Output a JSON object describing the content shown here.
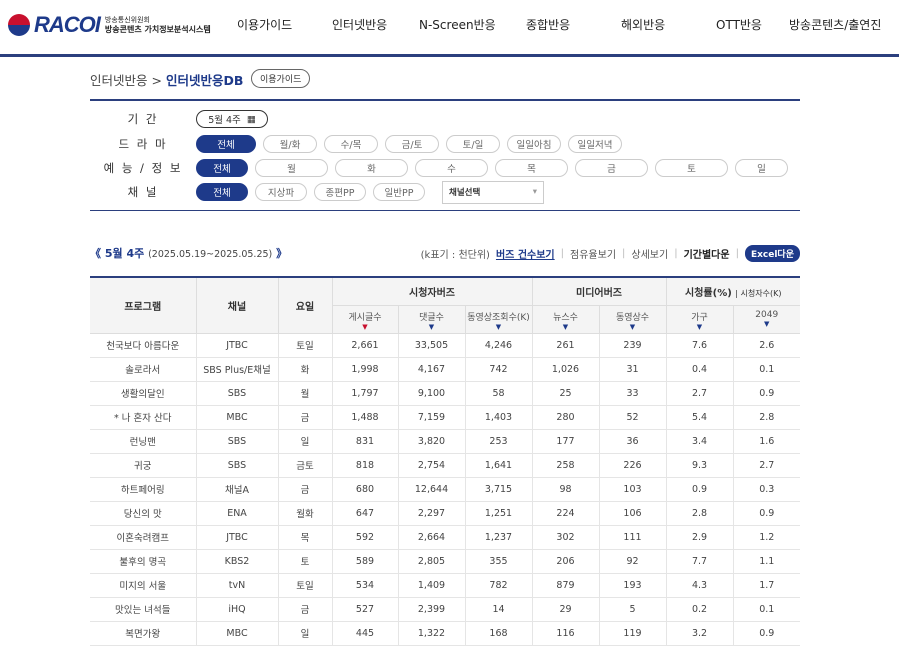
{
  "header": {
    "brand": "RACOI",
    "org": "방송통신위원회",
    "system": "방송콘텐츠 가치정보분석시스템",
    "nav": [
      "이용가이드",
      "인터넷반응",
      "N-Screen반응",
      "종합반응",
      "해외반응",
      "OTT반응",
      "방송콘텐츠/출연진"
    ]
  },
  "breadcrumb": {
    "parent": "인터넷반응",
    "sep": ">",
    "current": "인터넷반응DB",
    "guide": "이용가이드"
  },
  "filters": {
    "period": {
      "label": "기 간",
      "value": "5월 4주",
      "icon": "calendar-icon"
    },
    "drama": {
      "label": "드 라 마",
      "options": [
        "전체",
        "월/화",
        "수/목",
        "금/토",
        "토/일",
        "일일아침",
        "일일저녁"
      ],
      "selected": "전체"
    },
    "variety": {
      "label": "예 능 / 정 보",
      "options": [
        "전체",
        "월",
        "화",
        "수",
        "목",
        "금",
        "토",
        "일"
      ],
      "selected": "전체"
    },
    "channel": {
      "label": "채 널",
      "options": [
        "전체",
        "지상파",
        "종편PP",
        "일반PP"
      ],
      "selected": "전체",
      "select": "채널선택"
    }
  },
  "week": {
    "prev": "《",
    "label": "5월 4주",
    "range": "(2025.05.19~2025.05.25)",
    "next": "》"
  },
  "tools": {
    "unit": "(k표기 : 천단위)",
    "buzz": "버즈 건수보기",
    "share": "점유율보기",
    "detail": "상세보기",
    "period_down": "기간별다운",
    "excel": "Excel다운"
  },
  "table": {
    "h": {
      "program": "프로그램",
      "channel": "채널",
      "day": "요일",
      "viewer": "시청자버즈",
      "media": "미디어버즈",
      "rating": "시청률(%)",
      "viewers": "| 시청자수(K)"
    },
    "sub": [
      "게시글수",
      "댓글수",
      "동영상조회수(K)",
      "뉴스수",
      "동영상수",
      "가구",
      "2049"
    ],
    "rows": [
      [
        "천국보다 아름다운",
        "JTBC",
        "토일",
        "2,661",
        "33,505",
        "4,246",
        "261",
        "239",
        "7.6",
        "2.6"
      ],
      [
        "솔로라서",
        "SBS Plus/E채널",
        "화",
        "1,998",
        "4,167",
        "742",
        "1,026",
        "31",
        "0.4",
        "0.1"
      ],
      [
        "생활의달인",
        "SBS",
        "월",
        "1,797",
        "9,100",
        "58",
        "25",
        "33",
        "2.7",
        "0.9"
      ],
      [
        "* 나 혼자 산다",
        "MBC",
        "금",
        "1,488",
        "7,159",
        "1,403",
        "280",
        "52",
        "5.4",
        "2.8"
      ],
      [
        "런닝맨",
        "SBS",
        "일",
        "831",
        "3,820",
        "253",
        "177",
        "36",
        "3.4",
        "1.6"
      ],
      [
        "귀궁",
        "SBS",
        "금토",
        "818",
        "2,754",
        "1,641",
        "258",
        "226",
        "9.3",
        "2.7"
      ],
      [
        "하트페어링",
        "채널A",
        "금",
        "680",
        "12,644",
        "3,715",
        "98",
        "103",
        "0.9",
        "0.3"
      ],
      [
        "당신의 맛",
        "ENA",
        "월화",
        "647",
        "2,297",
        "1,251",
        "224",
        "106",
        "2.8",
        "0.9"
      ],
      [
        "이혼숙려캠프",
        "JTBC",
        "목",
        "592",
        "2,664",
        "1,237",
        "302",
        "111",
        "2.9",
        "1.2"
      ],
      [
        "불후의 명곡",
        "KBS2",
        "토",
        "589",
        "2,805",
        "355",
        "206",
        "92",
        "7.7",
        "1.1"
      ],
      [
        "미지의 서울",
        "tvN",
        "토일",
        "534",
        "1,409",
        "782",
        "879",
        "193",
        "4.3",
        "1.7"
      ],
      [
        "맛있는 녀석들",
        "iHQ",
        "금",
        "527",
        "2,399",
        "14",
        "29",
        "5",
        "0.2",
        "0.1"
      ],
      [
        "복면가왕",
        "MBC",
        "일",
        "445",
        "1,322",
        "168",
        "116",
        "119",
        "3.2",
        "0.9"
      ]
    ]
  }
}
